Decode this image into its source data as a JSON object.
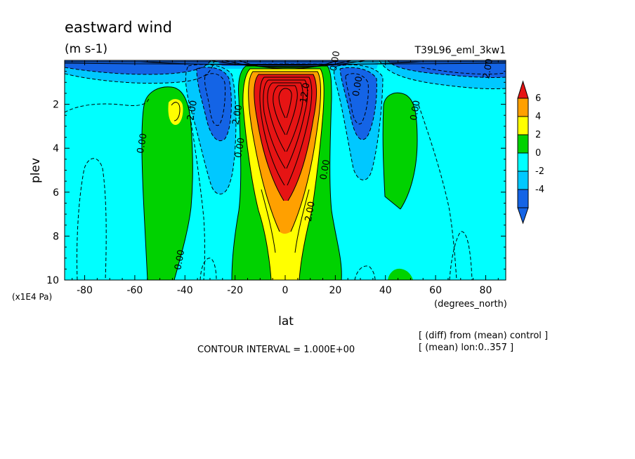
{
  "chart_data": {
    "type": "heatmap",
    "title": "eastward wind",
    "units": "(m s-1)",
    "run_label": "T39L96_eml_3kw1",
    "xlabel": "lat",
    "x_units": "(degrees_north)",
    "ylabel": "plev",
    "y_units": "(x1E4 Pa)",
    "xlim": [
      -88,
      88
    ],
    "ylim": [
      0,
      10
    ],
    "y_inverted": true,
    "x_ticks": [
      -80,
      -60,
      -40,
      -20,
      0,
      20,
      40,
      60,
      80
    ],
    "x_tick_labels": [
      "-80",
      "-60",
      "-40",
      "-20",
      "0",
      "20",
      "40",
      "60",
      "80"
    ],
    "y_ticks": [
      2,
      4,
      6,
      8,
      10
    ],
    "y_tick_labels": [
      "2",
      "4",
      "6",
      "8",
      "10"
    ],
    "contour_interval_text": "CONTOUR INTERVAL = 1.000E+00",
    "notes": [
      "[ (diff) from (mean) control ]",
      "[ (mean) lon:0..357 ]"
    ],
    "colorbar": {
      "colors": [
        "#1464e6",
        "#00c8ff",
        "#00ffff",
        "#00d200",
        "#ffff00",
        "#ffa000",
        "#e61414"
      ],
      "labels": [
        "6",
        "4",
        "2",
        "0",
        "-2",
        "-4"
      ]
    },
    "contour_labels": [
      {
        "text": "2.00",
        "x": 82,
        "y": 0.4
      },
      {
        "text": "0.00",
        "x": 53,
        "y": 2.3
      },
      {
        "text": "0.00",
        "x": 30,
        "y": 1.2
      },
      {
        "text": "0.00",
        "x": 17,
        "y": 5.0
      },
      {
        "text": "2.00",
        "x": 11,
        "y": 6.9
      },
      {
        "text": "12.0",
        "x": 9,
        "y": 1.5
      },
      {
        "text": "0.00",
        "x": -17,
        "y": 4.0
      },
      {
        "text": "2.00",
        "x": -18,
        "y": 2.5
      },
      {
        "text": "2.00",
        "x": -36,
        "y": 2.3
      },
      {
        "text": "0.00",
        "x": -56,
        "y": 3.8
      },
      {
        "text": "0.00",
        "x": -41,
        "y": 9.1
      },
      {
        "text": "0.00",
        "x": 21,
        "y": 0.05
      }
    ]
  }
}
